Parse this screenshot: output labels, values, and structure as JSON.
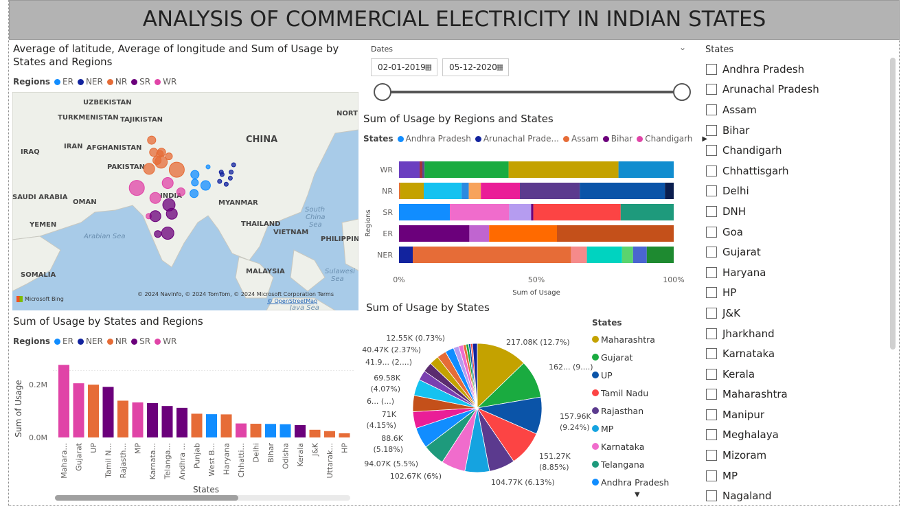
{
  "title": "ANALYSIS OF COMMERCIAL ELECTRICITY IN INDIAN STATES",
  "colors": {
    "ER": "#118dff",
    "NER": "#12239e",
    "NR": "#e66c37",
    "SR": "#6b007b",
    "WR": "#e044a7"
  },
  "map_visual": {
    "title_line1": "Average of latitude, Average of longitude and Sum of Usage by",
    "title_line2": "States and Regions",
    "legend_title": "Regions",
    "legend": [
      "ER",
      "NER",
      "NR",
      "SR",
      "WR"
    ],
    "labels": [
      {
        "id": "uzbekistan",
        "text": "UZBEKISTAN"
      },
      {
        "id": "turkmenistan",
        "text": "TURKMENISTAN"
      },
      {
        "id": "tajikistan",
        "text": "TAJIKISTAN"
      },
      {
        "id": "iraq",
        "text": "IRAQ"
      },
      {
        "id": "iran",
        "text": "IRAN"
      },
      {
        "id": "afghanistan",
        "text": "AFGHANISTAN"
      },
      {
        "id": "pakistan",
        "text": "PAKISTAN"
      },
      {
        "id": "china",
        "text": "CHINA"
      },
      {
        "id": "nort",
        "text": "NORT"
      },
      {
        "id": "india",
        "text": "INDIA"
      },
      {
        "id": "saudi",
        "text": "SAUDI ARABIA"
      },
      {
        "id": "oman",
        "text": "OMAN"
      },
      {
        "id": "myanmar",
        "text": "MYANMAR"
      },
      {
        "id": "yemen",
        "text": "YEMEN"
      },
      {
        "id": "thailand",
        "text": "THAILAND"
      },
      {
        "id": "vietnam",
        "text": "VIETNAM"
      },
      {
        "id": "philippin",
        "text": "PHILIPPIN"
      },
      {
        "id": "somalia",
        "text": "SOMALIA"
      },
      {
        "id": "malaysia",
        "text": "MALAYSIA"
      }
    ],
    "sea_labels": [
      {
        "id": "arabian",
        "text": "Arabian Sea"
      },
      {
        "id": "southchina1",
        "text": "South"
      },
      {
        "id": "southchina2",
        "text": "China"
      },
      {
        "id": "southchina3",
        "text": "Sea"
      },
      {
        "id": "sulawesi1",
        "text": "Sulawesi"
      },
      {
        "id": "sulawesi2",
        "text": "Sea"
      },
      {
        "id": "java",
        "text": "Java Sea"
      }
    ],
    "attribution": "© 2024 NavInfo, © 2024 TomTom, © 2024 Microsoft Corporation  Terms",
    "osm": "© OpenStreetMap",
    "bing": "Microsoft Bing"
  },
  "date_slicer": {
    "label": "Dates",
    "start": "02-01-2019",
    "end": "05-12-2020"
  },
  "states_slicer": {
    "title": "States",
    "items": [
      "Andhra Pradesh",
      "Arunachal Pradesh",
      "Assam",
      "Bihar",
      "Chandigarh",
      "Chhattisgarh",
      "Delhi",
      "DNH",
      "Goa",
      "Gujarat",
      "Haryana",
      "HP",
      "J&K",
      "Jharkhand",
      "Karnataka",
      "Kerala",
      "Maharashtra",
      "Manipur",
      "Meghalaya",
      "Mizoram",
      "MP",
      "Nagaland"
    ]
  },
  "stacked_visual": {
    "title": "Sum of Usage by Regions and States",
    "legend_title": "States",
    "legend": [
      {
        "name": "Andhra Pradesh",
        "color": "#118dff"
      },
      {
        "name": "Arunachal Prade...",
        "color": "#12239e"
      },
      {
        "name": "Assam",
        "color": "#e66c37"
      },
      {
        "name": "Bihar",
        "color": "#6b007b"
      },
      {
        "name": "Chandigarh",
        "color": "#e044a7"
      }
    ],
    "ylabel": "Regions",
    "xlabel": "Sum of Usage",
    "xticks": [
      "0%",
      "50%",
      "100%"
    ]
  },
  "bar_visual": {
    "title": "Sum of Usage by States and Regions",
    "legend_title": "Regions",
    "legend": [
      "ER",
      "NER",
      "NR",
      "SR",
      "WR"
    ],
    "ylabel": "Sum of Usage",
    "xlabel": "States",
    "yticks": [
      "0.2M",
      "0.0M"
    ]
  },
  "pie_visual": {
    "title": "Sum of Usage by States",
    "legend_title": "States",
    "legend": [
      {
        "name": "Maharashtra",
        "color": "#c4a200"
      },
      {
        "name": "Gujarat",
        "color": "#1aab40"
      },
      {
        "name": "UP",
        "color": "#0b54a8"
      },
      {
        "name": "Tamil Nadu",
        "color": "#fc4444"
      },
      {
        "name": "Rajasthan",
        "color": "#5b3a8e"
      },
      {
        "name": "MP",
        "color": "#15a3e0"
      },
      {
        "name": "Karnataka",
        "color": "#f06ccc"
      },
      {
        "name": "Telangana",
        "color": "#1e9a7c"
      },
      {
        "name": "Andhra Pradesh",
        "color": "#118dff"
      }
    ]
  },
  "chart_data": [
    {
      "type": "scatter",
      "title": "Average of latitude, Average of longitude and Sum of Usage by States and Regions",
      "series": [
        {
          "name": "NR",
          "points": [
            {
              "x": 74.8,
              "y": 34.1
            },
            {
              "x": 77.2,
              "y": 31.1
            },
            {
              "x": 76.8,
              "y": 30.7
            },
            {
              "x": 75.3,
              "y": 31.1
            },
            {
              "x": 76.1,
              "y": 29.1
            },
            {
              "x": 77.1,
              "y": 28.7
            },
            {
              "x": 80.9,
              "y": 26.8
            },
            {
              "x": 74.2,
              "y": 27.0
            },
            {
              "x": 79.0,
              "y": 30.1
            }
          ]
        },
        {
          "name": "ER",
          "points": [
            {
              "x": 85.3,
              "y": 25.6
            },
            {
              "x": 87.9,
              "y": 22.9
            },
            {
              "x": 85.1,
              "y": 20.9
            },
            {
              "x": 85.3,
              "y": 23.6
            },
            {
              "x": 88.5,
              "y": 27.5
            }
          ]
        },
        {
          "name": "NER",
          "points": [
            {
              "x": 91.7,
              "y": 26.2
            },
            {
              "x": 93.9,
              "y": 24.7
            },
            {
              "x": 91.9,
              "y": 25.6
            },
            {
              "x": 92.9,
              "y": 23.2
            },
            {
              "x": 94.1,
              "y": 26.2
            },
            {
              "x": 91.3,
              "y": 23.9
            },
            {
              "x": 94.7,
              "y": 28.0
            }
          ]
        },
        {
          "name": "WR",
          "points": [
            {
              "x": 71.2,
              "y": 22.3
            },
            {
              "x": 75.7,
              "y": 19.8
            },
            {
              "x": 78.7,
              "y": 23.5
            },
            {
              "x": 81.9,
              "y": 21.3
            },
            {
              "x": 74.1,
              "y": 15.3
            }
          ]
        },
        {
          "name": "SR",
          "points": [
            {
              "x": 79.0,
              "y": 18.1
            },
            {
              "x": 79.7,
              "y": 15.9
            },
            {
              "x": 75.7,
              "y": 15.3
            },
            {
              "x": 78.7,
              "y": 11.1
            },
            {
              "x": 76.3,
              "y": 10.9
            }
          ]
        }
      ]
    },
    {
      "type": "bar",
      "title": "Sum of Usage by Regions and States",
      "orientation": "horizontal",
      "stacked_percent": true,
      "categories": [
        "WR",
        "NR",
        "SR",
        "ER",
        "NER"
      ],
      "segments": [
        [
          {
            "p": 7.5,
            "c": "#6b3fc0"
          },
          {
            "p": 1.0,
            "c": "#a4343a"
          },
          {
            "p": 0.8,
            "c": "#5c4b8f"
          },
          {
            "p": 30.6,
            "c": "#1aab40"
          },
          {
            "p": 40.0,
            "c": "#c4a200"
          },
          {
            "p": 20.1,
            "c": "#118dcf"
          }
        ],
        [
          {
            "p": 0.4,
            "c": "#e66c37"
          },
          {
            "p": 8.6,
            "c": "#c4a200"
          },
          {
            "p": 13.8,
            "c": "#15c2f0"
          },
          {
            "p": 2.6,
            "c": "#2b8ae0"
          },
          {
            "p": 4.4,
            "c": "#f7a35c"
          },
          {
            "p": 14.2,
            "c": "#ea1e97"
          },
          {
            "p": 21.8,
            "c": "#5b3a8e"
          },
          {
            "p": 31.0,
            "c": "#0b54a8"
          },
          {
            "p": 3.2,
            "c": "#0a1e4f"
          }
        ]
      ],
      "segments_more": [
        [
          {
            "p": 18.5,
            "c": "#118dff"
          },
          {
            "p": 21.6,
            "c": "#f06ccc"
          },
          {
            "p": 8.0,
            "c": "#b59cf0"
          },
          {
            "p": 0.8,
            "c": "#6b007b"
          },
          {
            "p": 31.8,
            "c": "#fc4444"
          },
          {
            "p": 19.3,
            "c": "#1e9a7c"
          }
        ],
        [
          {
            "p": 25.6,
            "c": "#6b007b"
          },
          {
            "p": 7.2,
            "c": "#c065d0"
          },
          {
            "p": 24.7,
            "c": "#ff6a00"
          },
          {
            "p": 42.5,
            "c": "#c4501a"
          }
        ],
        [
          {
            "p": 5.0,
            "c": "#12239e"
          },
          {
            "p": 57.6,
            "c": "#e66c37"
          },
          {
            "p": 5.8,
            "c": "#f58a8a"
          },
          {
            "p": 12.8,
            "c": "#00d3c0"
          },
          {
            "p": 4.0,
            "c": "#5ad46e"
          },
          {
            "p": 5.0,
            "c": "#4a65d0"
          },
          {
            "p": 9.8,
            "c": "#1e8a30"
          }
        ]
      ],
      "xlim": [
        0,
        100
      ]
    },
    {
      "type": "bar",
      "title": "Sum of Usage by States and Regions",
      "categories": [
        "Maharashtra",
        "Gujarat",
        "UP",
        "Tamil Nadu",
        "Rajasthan",
        "MP",
        "Karnataka",
        "Telangana",
        "Andhra Pradesh",
        "Punjab",
        "West Bengal",
        "Haryana",
        "Chhattisgarh",
        "Delhi",
        "Bihar",
        "Odisha",
        "Kerala",
        "J&K",
        "Uttarakhand",
        "HP"
      ],
      "category_labels": [
        "Mahara...",
        "Gujarat",
        "UP",
        "Tamil N...",
        "Rajasth...",
        "MP",
        "Karnata...",
        "Telanga...",
        "Andhra ...",
        "Punjab",
        "West B...",
        "Haryana",
        "Chhatti...",
        "Delhi",
        "Bihar",
        "Odisha",
        "Kerala",
        "J&K",
        "Uttarak...",
        "HP"
      ],
      "values": [
        217080,
        162000,
        157960,
        151270,
        110000,
        104770,
        102670,
        94070,
        88600,
        71000,
        69580,
        69000,
        41900,
        41000,
        40470,
        39500,
        37000,
        23000,
        19000,
        12550
      ],
      "regions": [
        "WR",
        "WR",
        "NR",
        "SR",
        "NR",
        "WR",
        "SR",
        "SR",
        "SR",
        "NR",
        "ER",
        "NR",
        "WR",
        "NR",
        "ER",
        "ER",
        "SR",
        "NR",
        "NR",
        "NR"
      ],
      "ylim": [
        0,
        230000
      ],
      "xlabel": "States",
      "ylabel": "Sum of Usage"
    },
    {
      "type": "pie",
      "title": "Sum of Usage by States",
      "slices": [
        {
          "name": "Maharashtra",
          "value": 217080,
          "pct": 12.7,
          "color": "#c4a200"
        },
        {
          "name": "Gujarat",
          "value": 162000,
          "pct": 9.5,
          "color": "#1aab40"
        },
        {
          "name": "UP",
          "value": 157960,
          "pct": 9.24,
          "color": "#0b54a8"
        },
        {
          "name": "Tamil Nadu",
          "value": 151270,
          "pct": 8.85,
          "color": "#fc4444"
        },
        {
          "name": "Rajasthan",
          "value": 110000,
          "pct": 6.4,
          "color": "#5b3a8e"
        },
        {
          "name": "MP",
          "value": 104770,
          "pct": 6.13,
          "color": "#15a3e0"
        },
        {
          "name": "Karnataka",
          "value": 102670,
          "pct": 6.0,
          "color": "#f06ccc"
        },
        {
          "name": "Telangana",
          "value": 94070,
          "pct": 5.5,
          "color": "#1e9a7c"
        },
        {
          "name": "Andhra Pradesh",
          "value": 88600,
          "pct": 5.18,
          "color": "#118dff"
        },
        {
          "name": "Punjab",
          "value": 71000,
          "pct": 4.15,
          "color": "#ea1e97"
        },
        {
          "name": "Haryana",
          "value": 69000,
          "pct": 4.0,
          "color": "#c4501a"
        },
        {
          "name": "West Bengal",
          "value": 69580,
          "pct": 4.07,
          "color": "#15c2f0"
        },
        {
          "name": "Chhattisgarh",
          "value": 41900,
          "pct": 2.45,
          "color": "#7a3fb0"
        },
        {
          "name": "Delhi",
          "value": 41000,
          "pct": 2.4,
          "color": "#5b2c6f"
        },
        {
          "name": "Bihar",
          "value": 40470,
          "pct": 2.37,
          "color": "#c4a200"
        },
        {
          "name": "Odisha",
          "value": 39500,
          "pct": 2.3,
          "color": "#e66c37"
        },
        {
          "name": "Kerala",
          "value": 37000,
          "pct": 2.2,
          "color": "#118dff"
        },
        {
          "name": "J&K",
          "value": 23000,
          "pct": 1.35,
          "color": "#b59cf0"
        },
        {
          "name": "Uttarakhand",
          "value": 19000,
          "pct": 1.1,
          "color": "#f06ccc"
        },
        {
          "name": "HP",
          "value": 12550,
          "pct": 0.73,
          "color": "#e66c37"
        },
        {
          "name": "Jharkhand",
          "value": 11000,
          "pct": 0.64,
          "color": "#1aab40"
        },
        {
          "name": "Assam",
          "value": 9000,
          "pct": 0.53,
          "color": "#0b54a8"
        },
        {
          "name": "Goa",
          "value": 8000,
          "pct": 0.47,
          "color": "#fc4444"
        },
        {
          "name": "Others",
          "value": 20000,
          "pct": 1.2,
          "color": "#12239e"
        }
      ],
      "data_labels": [
        {
          "id": "maha",
          "text": "217.08K (12.7%)"
        },
        {
          "id": "guj",
          "text": "162... (9....)"
        },
        {
          "id": "up1",
          "text": "157.96K"
        },
        {
          "id": "up2",
          "text": "(9.24%)"
        },
        {
          "id": "tn1",
          "text": "151.27K"
        },
        {
          "id": "tn2",
          "text": "(8.85%)"
        },
        {
          "id": "mp",
          "text": "104.77K (6.13%)"
        },
        {
          "id": "kar",
          "text": "102.67K (6%)"
        },
        {
          "id": "tel",
          "text": "94.07K (5.5%)"
        },
        {
          "id": "ap1",
          "text": "88.6K"
        },
        {
          "id": "ap2",
          "text": "(5.18%)"
        },
        {
          "id": "pun1",
          "text": "71K"
        },
        {
          "id": "pun2",
          "text": "(4.15%)"
        },
        {
          "id": "har",
          "text": "6... (...)"
        },
        {
          "id": "wb1",
          "text": "69.58K"
        },
        {
          "id": "wb2",
          "text": "(4.07%)"
        },
        {
          "id": "ch",
          "text": "41.9... (2....)"
        },
        {
          "id": "bih",
          "text": "40.47K (2.37%)"
        },
        {
          "id": "hp",
          "text": "12.55K (0.73%)"
        }
      ]
    }
  ]
}
